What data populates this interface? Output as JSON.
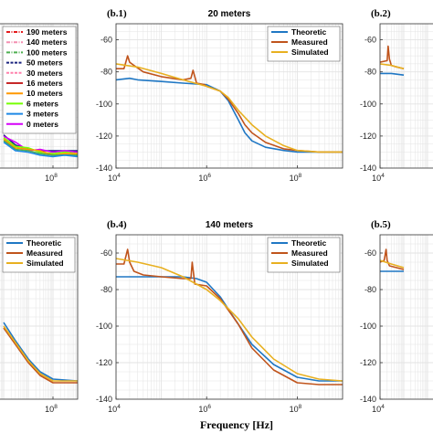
{
  "figure": {
    "xlabel": "Frequency [Hz]"
  },
  "colors": {
    "theoretic": "#1f77c4",
    "measured": "#c0541c",
    "simulated": "#e8b020",
    "grid": "#e3e3e3",
    "axis": "#333333",
    "background": "#ffffff"
  },
  "chart_data": [
    {
      "id": "a",
      "type": "line",
      "panel_label": "",
      "title": "",
      "xlabel": "",
      "ylabel": "",
      "x_log": true,
      "xlim": [
        10000,
        1000000000
      ],
      "ylim": [
        -140,
        -40
      ],
      "x_ticks_visible": [
        {
          "label": "10",
          "exp": "8",
          "value": 100000000
        }
      ],
      "y_ticks_visible": [],
      "grid": true,
      "legend": {
        "placement": "top-left",
        "entries": [
          {
            "label": "190 meters",
            "color": "#e41a1c",
            "style": "dashdot"
          },
          {
            "label": "140 meters",
            "color": "#f48fb1",
            "style": "dashdot"
          },
          {
            "label": "100 meters",
            "color": "#4caf50",
            "style": "dashdot"
          },
          {
            "label": "50 meters",
            "color": "#1a237e",
            "style": "dashed"
          },
          {
            "label": "30 meters",
            "color": "#ff80ab",
            "style": "dashed"
          },
          {
            "label": "16 meters",
            "color": "#c62828",
            "style": "solid"
          },
          {
            "label": "10 meters",
            "color": "#ff9800",
            "style": "solid"
          },
          {
            "label": "6 meters",
            "color": "#76ff03",
            "style": "solid"
          },
          {
            "label": "3 meters",
            "color": "#1e88e5",
            "style": "solid"
          },
          {
            "label": "0 meters",
            "color": "#d500f9",
            "style": "solid"
          }
        ]
      },
      "series": [
        {
          "color": "#1a237e",
          "x": [
            1000000,
            3000000,
            10000000,
            30000000,
            100000000,
            300000000,
            1000000000
          ],
          "y": [
            -117,
            -124,
            -127,
            -128,
            -128,
            -128,
            -128
          ]
        },
        {
          "color": "#d500f9",
          "x": [
            1000000,
            3000000,
            10000000,
            30000000,
            100000000,
            300000000,
            1000000000
          ],
          "y": [
            -118,
            -122,
            -128,
            -127,
            -129,
            -128,
            -129
          ]
        },
        {
          "color": "#76ff03",
          "x": [
            1000000,
            3000000,
            10000000,
            30000000,
            100000000,
            300000000,
            1000000000
          ],
          "y": [
            -119,
            -125,
            -126,
            -129,
            -130,
            -129,
            -130
          ]
        },
        {
          "color": "#ff9800",
          "x": [
            1000000,
            3000000,
            10000000,
            30000000,
            100000000,
            300000000,
            1000000000
          ],
          "y": [
            -120,
            -126,
            -127,
            -128,
            -131,
            -130,
            -130
          ]
        },
        {
          "color": "#4caf50",
          "x": [
            1000000,
            3000000,
            10000000,
            30000000,
            100000000,
            300000000,
            1000000000
          ],
          "y": [
            -121,
            -127,
            -128,
            -130,
            -131,
            -131,
            -131
          ]
        },
        {
          "color": "#1e88e5",
          "x": [
            1000000,
            3000000,
            10000000,
            30000000,
            100000000,
            300000000,
            1000000000
          ],
          "y": [
            -122,
            -128,
            -129,
            -131,
            -132,
            -131,
            -132
          ]
        }
      ]
    },
    {
      "id": "b1",
      "type": "line",
      "panel_label": "(b.1)",
      "title": "20 meters",
      "xlabel": "",
      "ylabel": "",
      "x_log": true,
      "xlim": [
        10000,
        1000000000
      ],
      "ylim": [
        -140,
        -50
      ],
      "x_ticks": [
        {
          "label": "10",
          "exp": "4",
          "value": 10000
        },
        {
          "label": "10",
          "exp": "6",
          "value": 1000000
        },
        {
          "label": "10",
          "exp": "8",
          "value": 100000000
        }
      ],
      "y_ticks": [
        -140,
        -120,
        -100,
        -80,
        -60
      ],
      "grid": true,
      "legend": {
        "placement": "top-right",
        "entries": [
          {
            "label": "Theoretic",
            "color": "#1f77c4"
          },
          {
            "label": "Measured",
            "color": "#c0541c"
          },
          {
            "label": "Simulated",
            "color": "#e8b020"
          }
        ]
      },
      "series": [
        {
          "key": "theoretic",
          "x": [
            10000,
            20000,
            30000,
            100000,
            300000,
            1000000,
            2000000,
            3000000,
            5000000,
            7000000,
            10000000,
            20000000,
            50000000,
            100000000,
            200000000,
            1000000000
          ],
          "y": [
            -85,
            -84,
            -85,
            -86,
            -87,
            -88,
            -92,
            -98,
            -110,
            -118,
            -123,
            -127,
            -129,
            -130,
            -130,
            -130
          ]
        },
        {
          "key": "measured",
          "x": [
            10000,
            15000,
            18000,
            20000,
            25000,
            40000,
            100000,
            300000,
            450000,
            500000,
            600000,
            900000,
            1000000,
            2000000,
            3000000,
            5000000,
            7000000,
            10000000,
            20000000,
            50000000,
            100000000,
            300000000,
            1000000000
          ],
          "y": [
            -78,
            -78,
            -70,
            -74,
            -76,
            -80,
            -83,
            -85,
            -84,
            -79,
            -87,
            -88,
            -89,
            -92,
            -97,
            -106,
            -113,
            -118,
            -124,
            -128,
            -129,
            -130,
            -130
          ]
        },
        {
          "key": "simulated",
          "x": [
            10000,
            30000,
            100000,
            300000,
            1000000,
            2000000,
            3000000,
            5000000,
            10000000,
            20000000,
            50000000,
            100000000,
            300000000,
            1000000000
          ],
          "y": [
            -75,
            -77,
            -81,
            -85,
            -89,
            -92,
            -96,
            -104,
            -113,
            -120,
            -126,
            -129,
            -130,
            -130
          ]
        }
      ]
    },
    {
      "id": "b2",
      "type": "line",
      "panel_label": "(b.2)",
      "title": "",
      "xlabel": "",
      "ylabel": "",
      "x_log": true,
      "xlim": [
        10000,
        1000000000
      ],
      "ylim": [
        -140,
        -50
      ],
      "x_ticks": [
        {
          "label": "10",
          "exp": "4",
          "value": 10000
        }
      ],
      "y_ticks": [
        -140,
        -120,
        -100,
        -80,
        -60
      ],
      "grid": true,
      "series": [
        {
          "key": "theoretic",
          "x": [
            10000,
            30000,
            100000
          ],
          "y": [
            -81,
            -81,
            -82
          ]
        },
        {
          "key": "measured",
          "x": [
            10000,
            20000,
            22000,
            25000,
            30000,
            50000,
            100000
          ],
          "y": [
            -74,
            -73,
            -64,
            -72,
            -76,
            -77,
            -78
          ]
        },
        {
          "key": "simulated",
          "x": [
            10000,
            30000,
            100000
          ],
          "y": [
            -75,
            -76,
            -78
          ]
        }
      ]
    },
    {
      "id": "a2",
      "type": "line",
      "panel_label": "",
      "title": "",
      "xlabel": "",
      "ylabel": "",
      "x_log": true,
      "xlim": [
        10000,
        1000000000
      ],
      "ylim": [
        -140,
        -50
      ],
      "x_ticks_visible": [
        {
          "label": "10",
          "exp": "8",
          "value": 100000000
        }
      ],
      "grid": true,
      "legend": {
        "placement": "top-left",
        "entries": [
          {
            "label": "Theoretic",
            "color": "#1f77c4"
          },
          {
            "label": "Measured",
            "color": "#c0541c"
          },
          {
            "label": "Simulated",
            "color": "#e8b020"
          }
        ]
      },
      "series": [
        {
          "key": "theoretic",
          "x": [
            1000000,
            3000000,
            10000000,
            30000000,
            100000000,
            1000000000
          ],
          "y": [
            -98,
            -108,
            -118,
            -125,
            -129,
            -130
          ]
        },
        {
          "key": "measured",
          "x": [
            1000000,
            3000000,
            10000000,
            30000000,
            100000000,
            1000000000
          ],
          "y": [
            -101,
            -110,
            -120,
            -127,
            -131,
            -131
          ]
        },
        {
          "key": "simulated",
          "x": [
            1000000,
            3000000,
            10000000,
            30000000,
            100000000,
            1000000000
          ],
          "y": [
            -100,
            -109,
            -119,
            -126,
            -130,
            -130
          ]
        }
      ]
    },
    {
      "id": "b4",
      "type": "line",
      "panel_label": "(b.4)",
      "title": "140 meters",
      "xlabel": "",
      "ylabel": "",
      "x_log": true,
      "xlim": [
        10000,
        1000000000
      ],
      "ylim": [
        -140,
        -50
      ],
      "x_ticks": [
        {
          "label": "10",
          "exp": "4",
          "value": 10000
        },
        {
          "label": "10",
          "exp": "6",
          "value": 1000000
        },
        {
          "label": "10",
          "exp": "8",
          "value": 100000000
        }
      ],
      "y_ticks": [
        -140,
        -120,
        -100,
        -80,
        -60
      ],
      "grid": true,
      "legend": {
        "placement": "top-right",
        "entries": [
          {
            "label": "Theoretic",
            "color": "#1f77c4"
          },
          {
            "label": "Measured",
            "color": "#c0541c"
          },
          {
            "label": "Simulated",
            "color": "#e8b020"
          }
        ]
      },
      "series": [
        {
          "key": "theoretic",
          "x": [
            10000,
            30000,
            100000,
            300000,
            600000,
            1000000,
            2000000,
            5000000,
            10000000,
            30000000,
            100000000,
            300000000,
            1000000000
          ],
          "y": [
            -73,
            -73,
            -73,
            -73,
            -74,
            -76,
            -84,
            -99,
            -110,
            -121,
            -128,
            -130,
            -130
          ]
        },
        {
          "key": "measured",
          "x": [
            10000,
            15000,
            18000,
            20000,
            25000,
            40000,
            100000,
            300000,
            450000,
            480000,
            550000,
            1000000,
            2000000,
            5000000,
            10000000,
            30000000,
            100000000,
            300000000,
            1000000000
          ],
          "y": [
            -66,
            -66,
            -58,
            -65,
            -70,
            -72,
            -73,
            -74,
            -74,
            -65,
            -77,
            -78,
            -85,
            -99,
            -112,
            -124,
            -131,
            -132,
            -132
          ]
        },
        {
          "key": "simulated",
          "x": [
            10000,
            30000,
            100000,
            300000,
            1000000,
            2000000,
            5000000,
            10000000,
            30000000,
            100000000,
            300000000,
            1000000000
          ],
          "y": [
            -63,
            -65,
            -68,
            -73,
            -80,
            -86,
            -96,
            -106,
            -118,
            -126,
            -129,
            -130
          ]
        }
      ]
    },
    {
      "id": "b5",
      "type": "line",
      "panel_label": "(b.5)",
      "title": "",
      "xlabel": "",
      "ylabel": "",
      "x_log": true,
      "xlim": [
        10000,
        1000000000
      ],
      "ylim": [
        -140,
        -50
      ],
      "x_ticks": [
        {
          "label": "10",
          "exp": "4",
          "value": 10000
        }
      ],
      "y_ticks": [
        -140,
        -120,
        -100,
        -80,
        -60
      ],
      "grid": true,
      "series": [
        {
          "key": "theoretic",
          "x": [
            10000,
            30000,
            100000
          ],
          "y": [
            -70,
            -70,
            -70
          ]
        },
        {
          "key": "measured",
          "x": [
            10000,
            15000,
            18000,
            20000,
            25000,
            50000,
            100000
          ],
          "y": [
            -65,
            -64,
            -58,
            -64,
            -67,
            -68,
            -69
          ]
        },
        {
          "key": "simulated",
          "x": [
            10000,
            30000,
            100000
          ],
          "y": [
            -64,
            -66,
            -68
          ]
        }
      ]
    }
  ]
}
